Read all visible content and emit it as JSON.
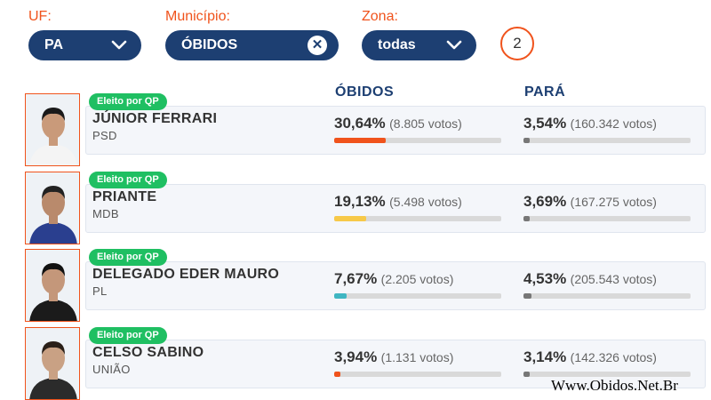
{
  "filters": {
    "uf": {
      "label": "UF:",
      "value": "PA"
    },
    "municipio": {
      "label": "Município:",
      "value": "ÓBIDOS"
    },
    "zona": {
      "label": "Zona:",
      "value": "todas"
    },
    "count": "2"
  },
  "headers": {
    "local": "ÓBIDOS",
    "state": "PARÁ"
  },
  "colors": {
    "accent": "#f0531c",
    "navy": "#1d3f72",
    "elected": "#1fbf62"
  },
  "candidates": [
    {
      "badge": "Eleito por QP",
      "name": "JÚNIOR FERRARI",
      "party": "PSD",
      "local_pct": "30,64%",
      "local_votes": "(8.805 votos)",
      "local_fraction": 0.3064,
      "local_color": "#f0531c",
      "state_pct": "3,54%",
      "state_votes": "(160.342 votos)",
      "state_fraction": 0.0354
    },
    {
      "badge": "Eleito por QP",
      "name": "PRIANTE",
      "party": "MDB",
      "local_pct": "19,13%",
      "local_votes": "(5.498 votos)",
      "local_fraction": 0.1913,
      "local_color": "#f7c948",
      "state_pct": "3,69%",
      "state_votes": "(167.275 votos)",
      "state_fraction": 0.0369
    },
    {
      "badge": "Eleito por QP",
      "name": "DELEGADO EDER MAURO",
      "party": "PL",
      "local_pct": "7,67%",
      "local_votes": "(2.205 votos)",
      "local_fraction": 0.0767,
      "local_color": "#3fb6c2",
      "state_pct": "4,53%",
      "state_votes": "(205.543 votos)",
      "state_fraction": 0.0453
    },
    {
      "badge": "Eleito por QP",
      "name": "CELSO SABINO",
      "party": "UNIÃO",
      "local_pct": "3,94%",
      "local_votes": "(1.131 votos)",
      "local_fraction": 0.0394,
      "local_color": "#f0531c",
      "state_pct": "3,14%",
      "state_votes": "(142.326 votos)",
      "state_fraction": 0.0314
    }
  ],
  "watermark": "Www.Obidos.Net.Br"
}
